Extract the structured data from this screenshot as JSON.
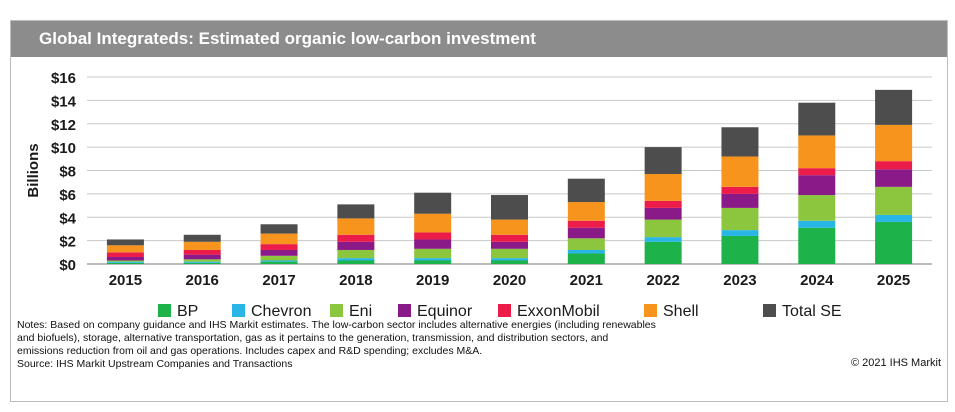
{
  "title": "Global Integrateds: Estimated organic low-carbon investment",
  "chart_data": {
    "type": "bar",
    "stacked": true,
    "categories": [
      "2015",
      "2016",
      "2017",
      "2018",
      "2019",
      "2020",
      "2021",
      "2022",
      "2023",
      "2024",
      "2025"
    ],
    "ylabel": "Billions",
    "xlabel": "",
    "ylim": [
      0,
      16
    ],
    "yticks": [
      0,
      2,
      4,
      6,
      8,
      10,
      12,
      14,
      16
    ],
    "ytick_labels": [
      "$0",
      "$2",
      "$4",
      "$6",
      "$8",
      "$10",
      "$12",
      "$14",
      "$16"
    ],
    "grid": "horizontal",
    "legend_position": "bottom",
    "series": [
      {
        "name": "BP",
        "color": "#1db34a",
        "values": [
          0.1,
          0.1,
          0.2,
          0.3,
          0.3,
          0.3,
          0.9,
          1.9,
          2.4,
          3.1,
          3.6
        ]
      },
      {
        "name": "Chevron",
        "color": "#29b6e6",
        "values": [
          0.1,
          0.1,
          0.1,
          0.2,
          0.2,
          0.2,
          0.3,
          0.4,
          0.5,
          0.6,
          0.6
        ]
      },
      {
        "name": "Eni",
        "color": "#8cc63f",
        "values": [
          0.1,
          0.2,
          0.4,
          0.7,
          0.8,
          0.8,
          1.0,
          1.5,
          1.9,
          2.2,
          2.4
        ]
      },
      {
        "name": "Equinor",
        "color": "#8b1a89",
        "values": [
          0.3,
          0.4,
          0.5,
          0.7,
          0.8,
          0.6,
          0.9,
          1.0,
          1.2,
          1.7,
          1.5
        ]
      },
      {
        "name": "ExxonMobil",
        "color": "#ec1c4a",
        "values": [
          0.4,
          0.4,
          0.5,
          0.6,
          0.6,
          0.6,
          0.6,
          0.6,
          0.6,
          0.6,
          0.7
        ]
      },
      {
        "name": "Shell",
        "color": "#f7941d",
        "values": [
          0.6,
          0.7,
          0.9,
          1.4,
          1.6,
          1.3,
          1.6,
          2.3,
          2.6,
          2.8,
          3.1
        ]
      },
      {
        "name": "Total SE",
        "color": "#4d4d4d",
        "values": [
          0.5,
          0.6,
          0.8,
          1.2,
          1.8,
          2.1,
          2.0,
          2.3,
          2.5,
          2.8,
          3.0
        ]
      }
    ]
  },
  "notes": "Notes: Based on company guidance and IHS Markit estimates. The low-carbon sector includes alternative energies (including renewables and biofuels), storage, alternative transportation, gas as it pertains to the generation, transmission, and distribution sectors, and emissions reduction from oil and gas operations. Includes capex and R&D spending; excludes M&A.",
  "source": "Source: IHS Markit Upstream Companies and Transactions",
  "copyright": "© 2021 IHS Markit"
}
